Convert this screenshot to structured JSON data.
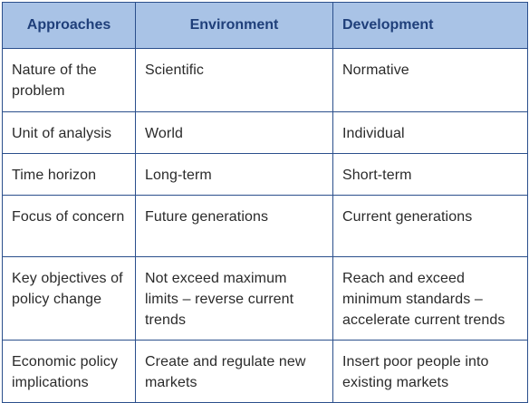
{
  "header": {
    "col1": "Approaches",
    "col2": "Environment",
    "col3": "Development"
  },
  "rows": [
    {
      "label": "Nature of the problem",
      "environment": "Scientific",
      "development": "Normative"
    },
    {
      "label": "Unit of analysis",
      "environment": "World",
      "development": "Individual"
    },
    {
      "label": "Time horizon",
      "environment": "Long-term",
      "development": "Short-term"
    },
    {
      "label": "Focus of concern",
      "environment": "Future generations",
      "development": "Current generations"
    },
    {
      "label": "Key objectives of policy change",
      "environment": "Not exceed maximum limits – reverse current trends",
      "development": "Reach and exceed minimum standards – accelerate current trends"
    },
    {
      "label": "Economic policy implications",
      "environment": "Create and regulate new markets",
      "development": "Insert poor people into existing markets"
    }
  ],
  "colors": {
    "header_bg": "#a9c3e6",
    "header_text": "#1f3f7a",
    "border": "#2b4f8c"
  }
}
